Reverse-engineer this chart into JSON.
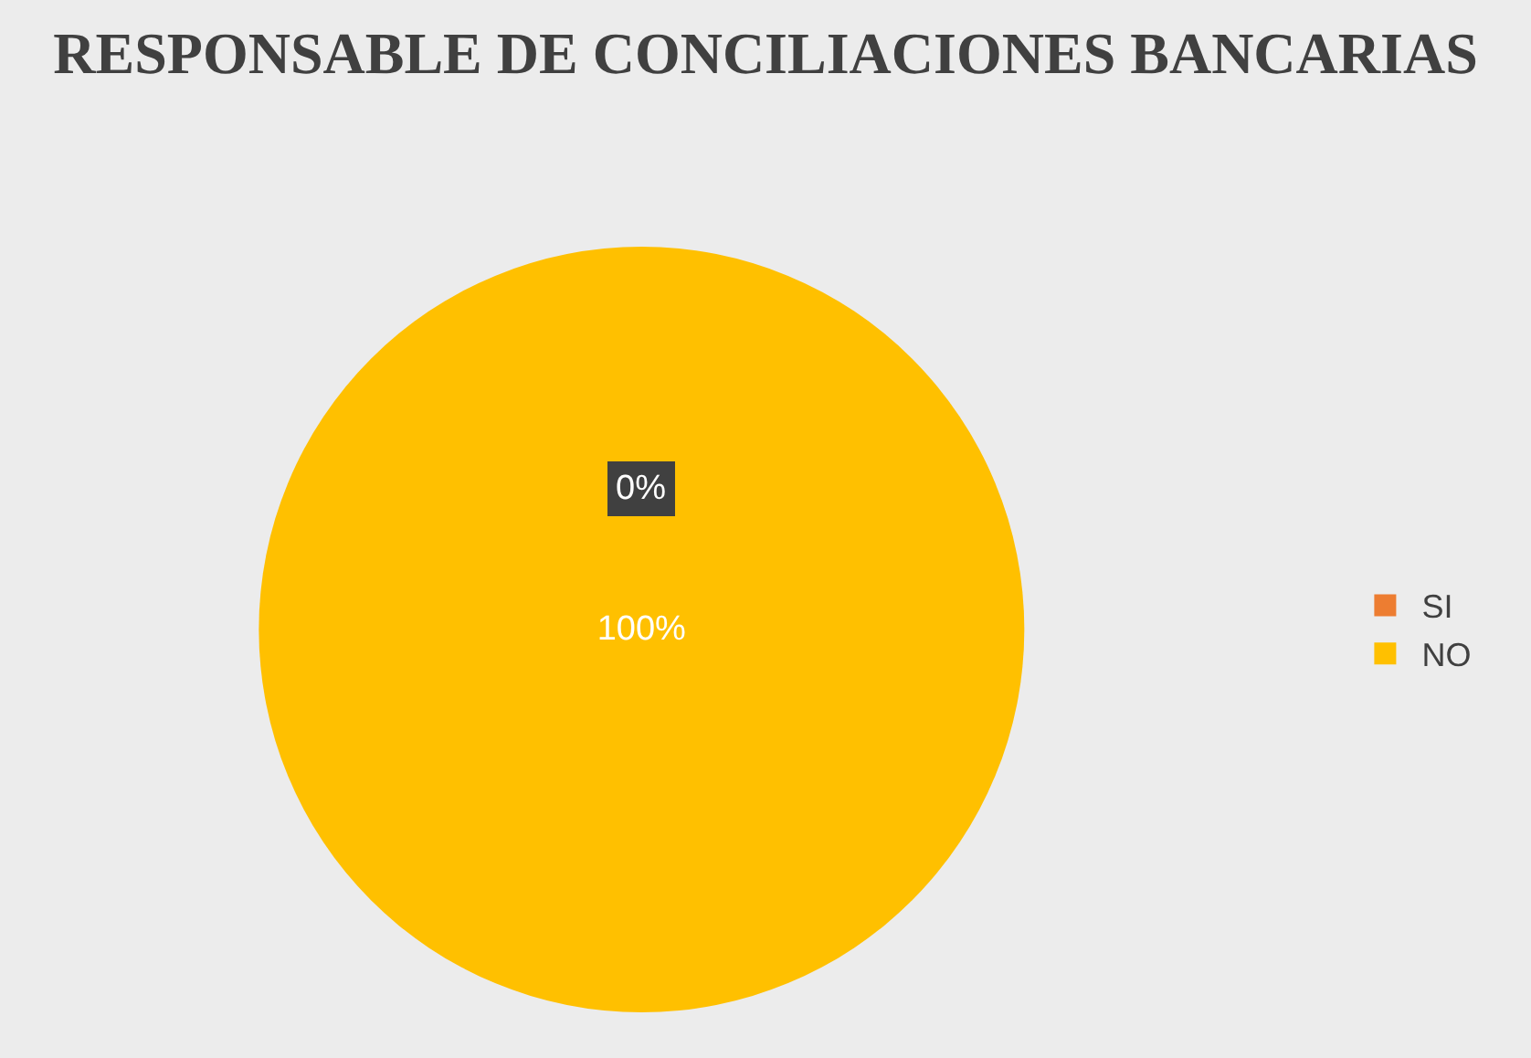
{
  "chart_data": {
    "type": "pie",
    "title": "RESPONSABLE DE CONCILIACIONES BANCARIAS",
    "categories": [
      "SI",
      "NO"
    ],
    "values": [
      0,
      100
    ],
    "colors": [
      "#ed7d31",
      "#ffc000"
    ],
    "value_labels": [
      "0%",
      "100%"
    ],
    "legend": "right"
  }
}
